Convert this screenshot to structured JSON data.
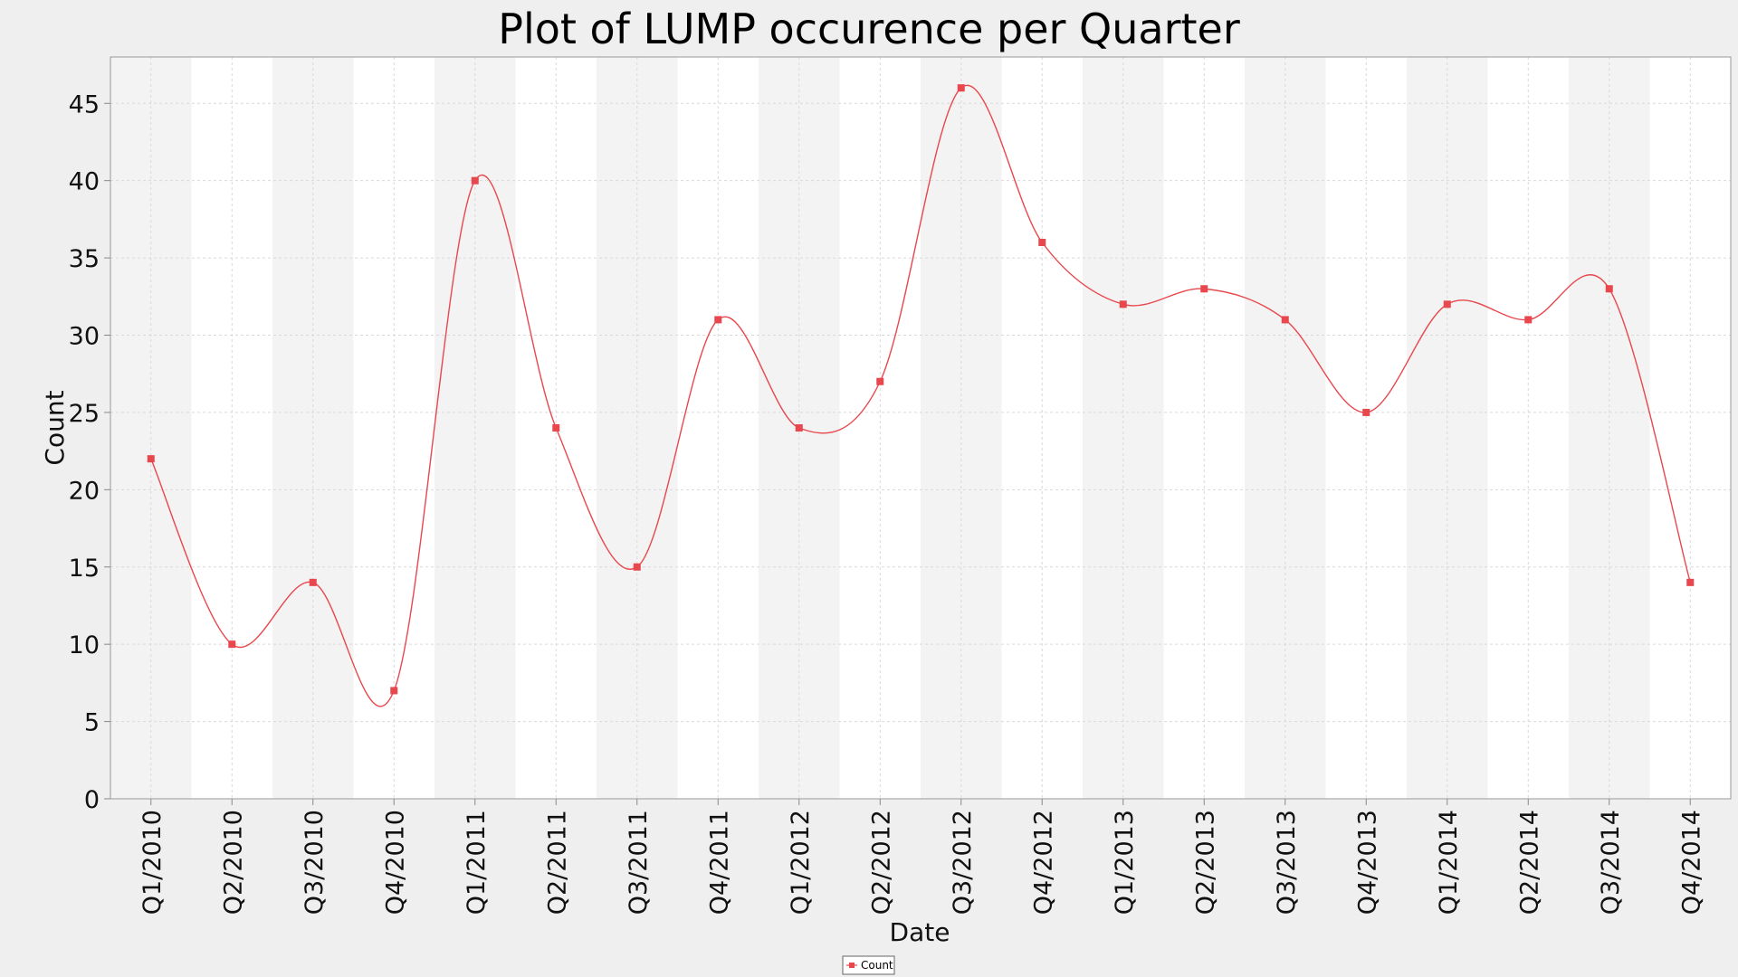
{
  "chart_data": {
    "type": "line",
    "title": "Plot of LUMP occurence per Quarter",
    "xlabel": "Date",
    "ylabel": "Count",
    "ylim": [
      0,
      48
    ],
    "yticks": [
      0,
      5,
      10,
      15,
      20,
      25,
      30,
      35,
      40,
      45
    ],
    "grid": true,
    "smoothed": true,
    "legend_position": "bottom-center",
    "categories": [
      "Q1/2010",
      "Q2/2010",
      "Q3/2010",
      "Q4/2010",
      "Q1/2011",
      "Q2/2011",
      "Q3/2011",
      "Q4/2011",
      "Q1/2012",
      "Q2/2012",
      "Q3/2012",
      "Q4/2012",
      "Q1/2013",
      "Q2/2013",
      "Q3/2013",
      "Q4/2013",
      "Q1/2014",
      "Q2/2014",
      "Q3/2014",
      "Q4/2014"
    ],
    "series": [
      {
        "name": "Count",
        "color": "#e8474d",
        "values": [
          22,
          10,
          14,
          7,
          40,
          24,
          15,
          31,
          24,
          27,
          46,
          36,
          32,
          33,
          31,
          25,
          32,
          31,
          33,
          14
        ]
      }
    ]
  },
  "colors": {
    "page_background": "#efefef",
    "plot_background": "#ffffff",
    "band_shade": "#f3f3f3",
    "grid": "#d9d9d9",
    "axis": "#888888"
  }
}
